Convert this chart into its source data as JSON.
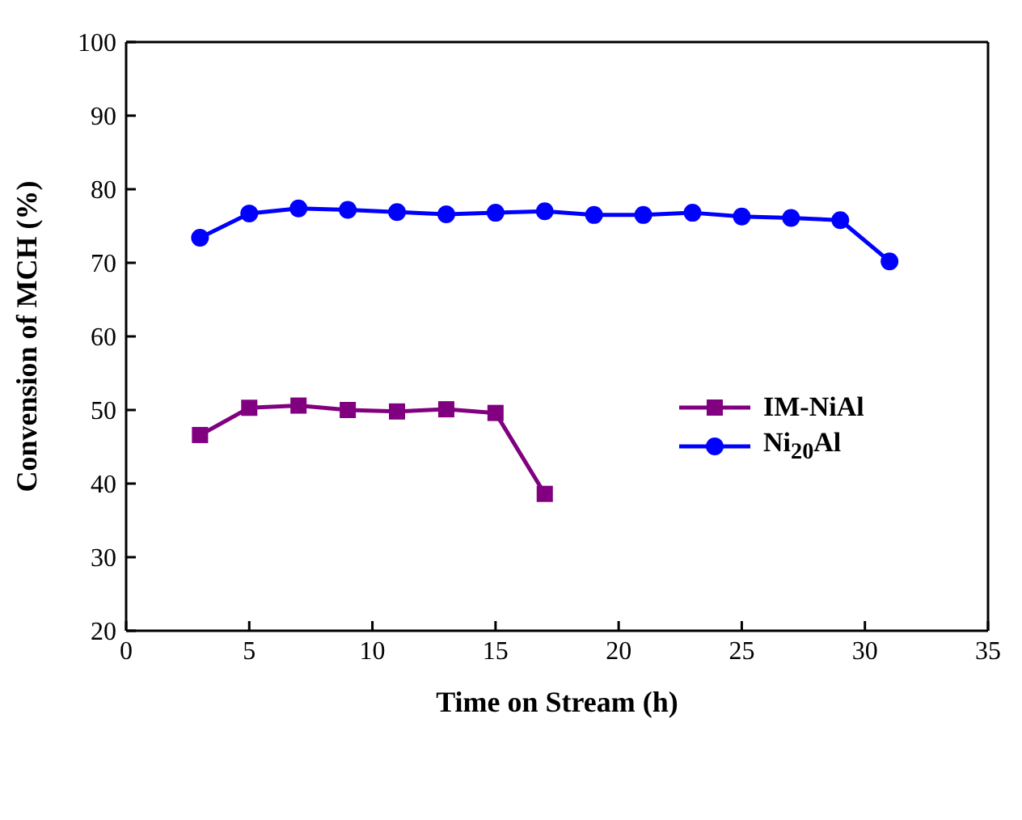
{
  "chart_data": {
    "type": "line",
    "xlabel": "Time on Stream (h)",
    "ylabel": "Convension of MCH (%)",
    "xlim": [
      0,
      35
    ],
    "xticks": [
      0,
      5,
      10,
      15,
      20,
      25,
      30,
      35
    ],
    "ylim": [
      20,
      100
    ],
    "yticks": [
      20,
      30,
      40,
      50,
      60,
      70,
      80,
      90,
      100
    ],
    "legend": "right",
    "line_style": "solid",
    "series": [
      {
        "name": "IM-NiAl",
        "color": "#800080",
        "marker": "square",
        "x": [
          3,
          5,
          7,
          9,
          11,
          13,
          15,
          17
        ],
        "values": [
          46.6,
          50.3,
          50.6,
          50.0,
          49.8,
          50.1,
          49.6,
          38.6
        ]
      },
      {
        "name": "Ni$_{20}$Al",
        "color": "#0000ff",
        "marker": "circle",
        "x": [
          3,
          5,
          7,
          9,
          11,
          13,
          15,
          17,
          19,
          21,
          23,
          25,
          27,
          29,
          31
        ],
        "values": [
          73.4,
          76.7,
          77.4,
          77.2,
          76.9,
          76.6,
          76.8,
          77.0,
          76.5,
          76.5,
          76.8,
          76.3,
          76.1,
          75.8,
          70.2
        ]
      }
    ]
  }
}
